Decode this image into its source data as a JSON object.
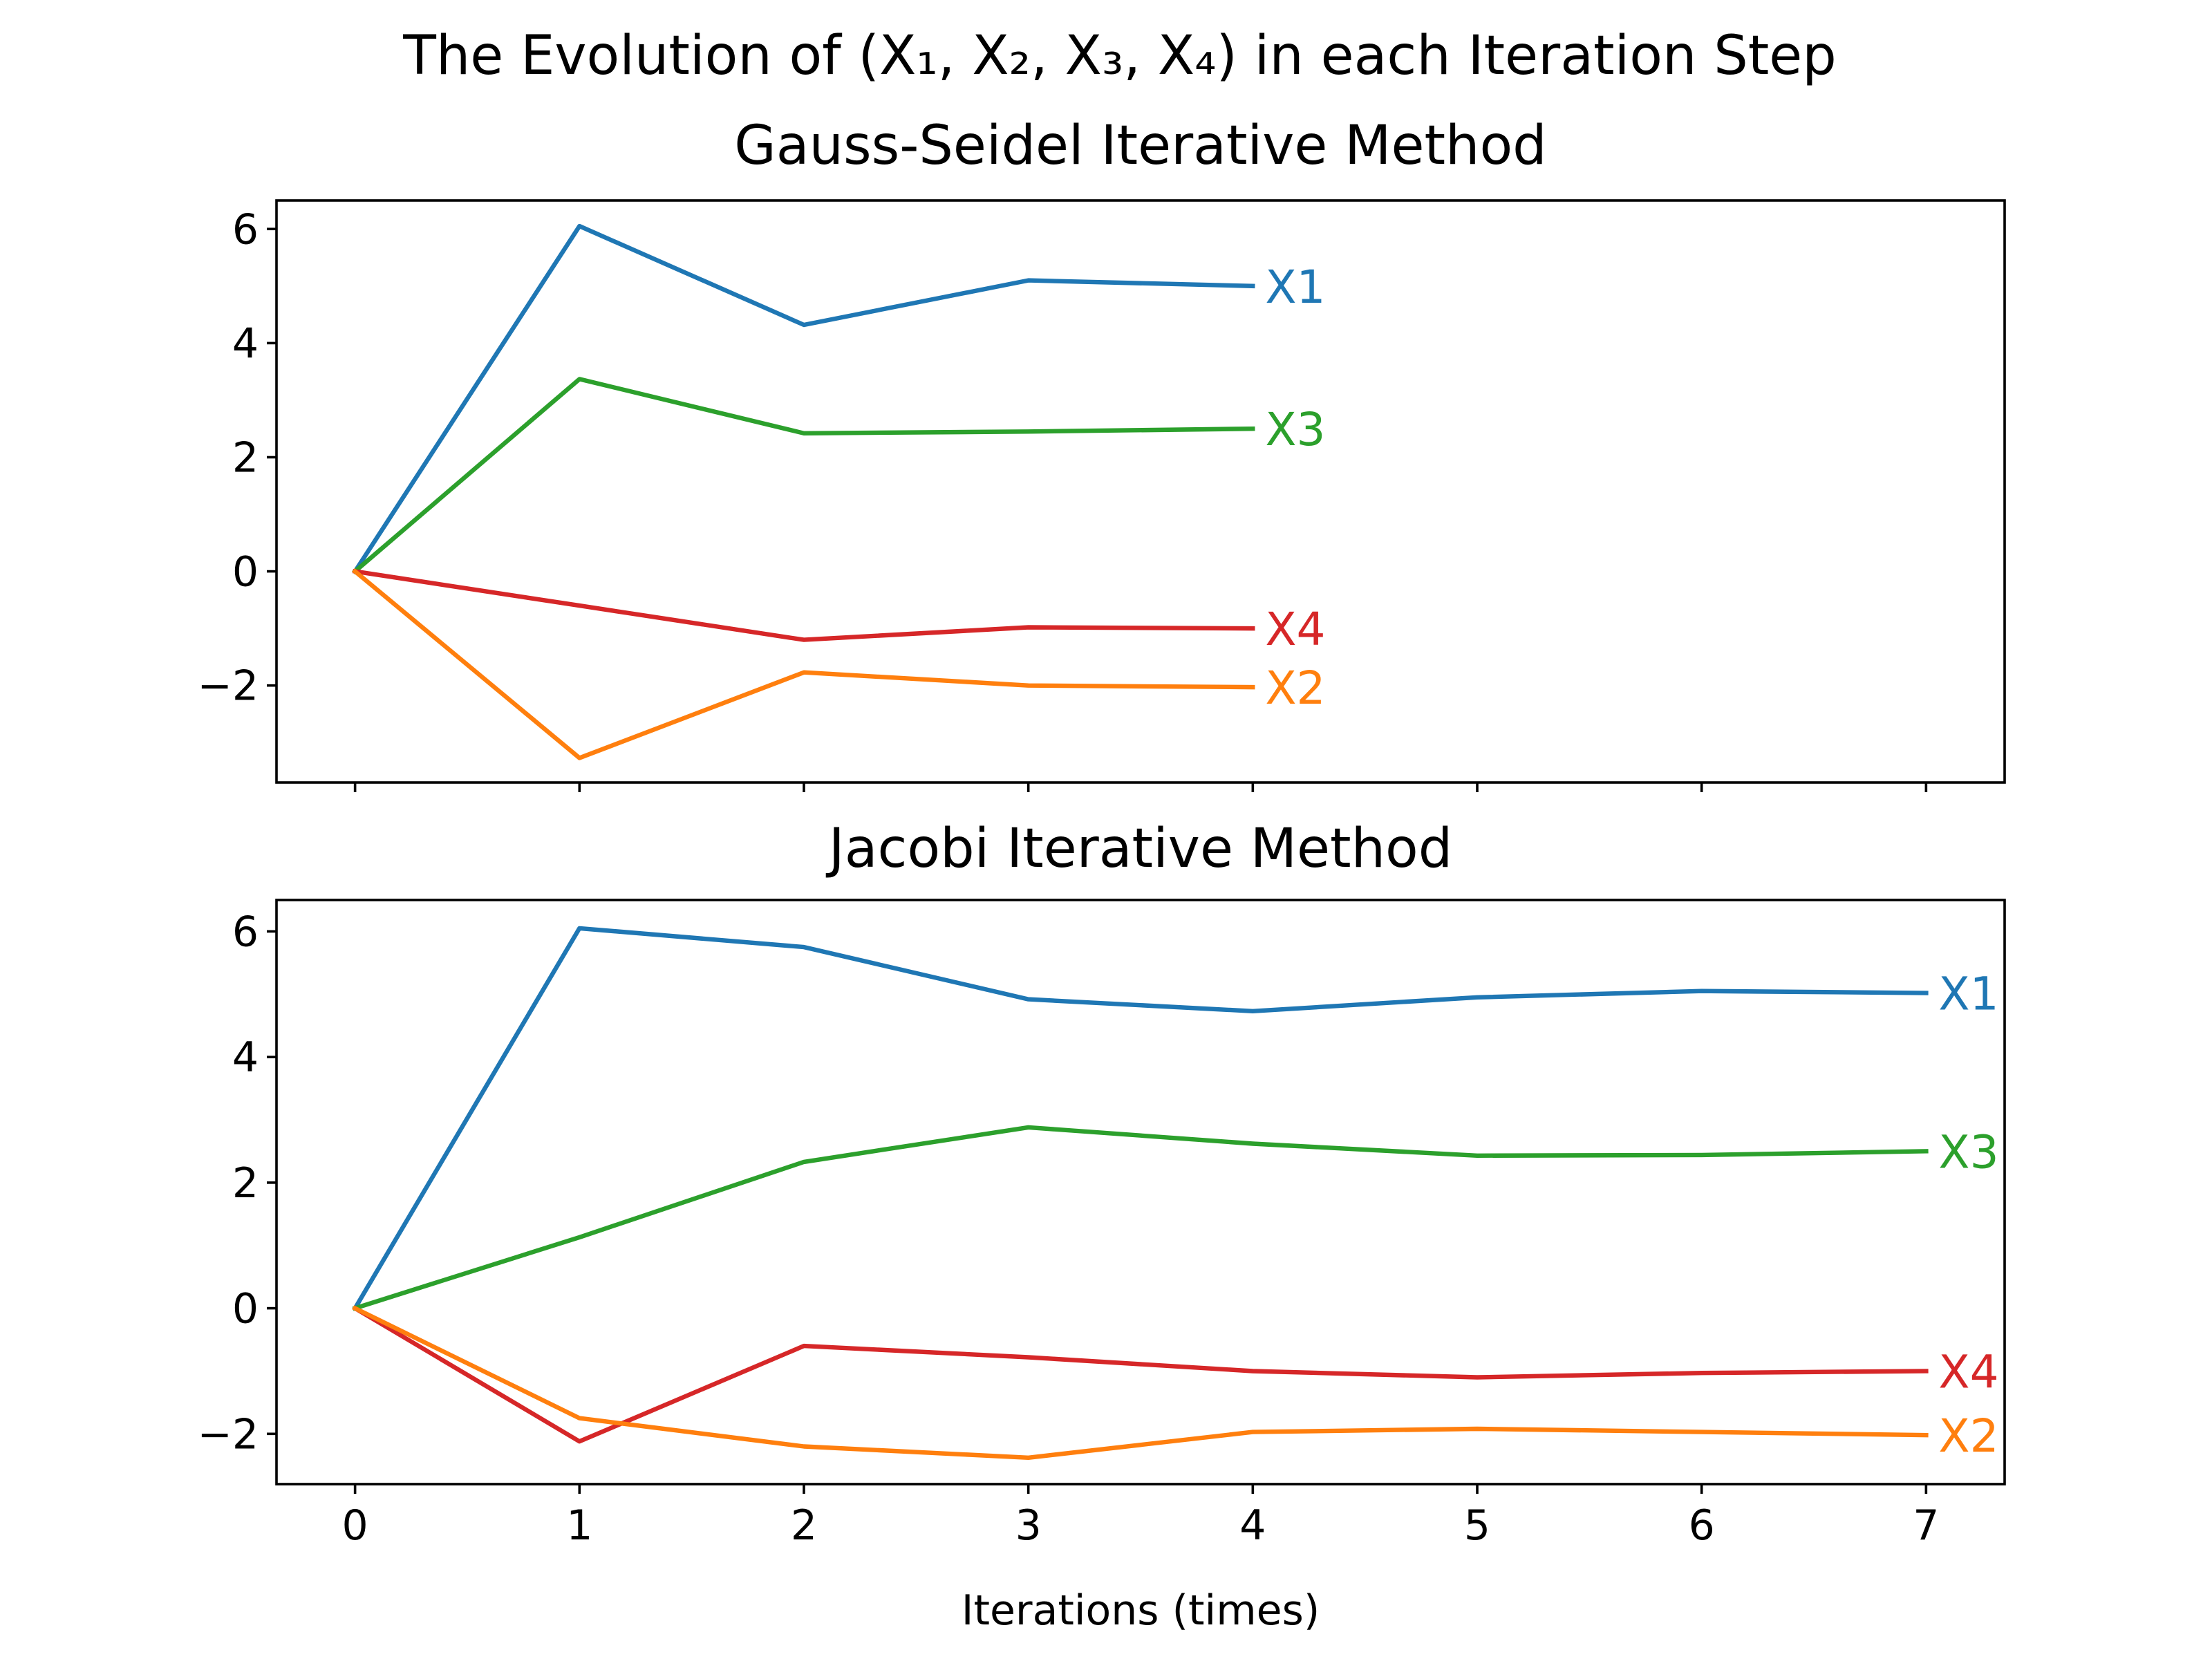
{
  "figure": {
    "suptitle": "The Evolution of (X₁, X₂, X₃, X₄) in each Iteration Step",
    "xlabel": "Iterations (times)"
  },
  "colors": {
    "X1": "#1f77b4",
    "X2": "#ff7f0e",
    "X3": "#2ca02c",
    "X4": "#d62728"
  },
  "chart_data": [
    {
      "type": "line",
      "title": "Gauss-Seidel Iterative Method",
      "xlim": [
        -0.35,
        7.35
      ],
      "ylim": [
        -3.7,
        6.5
      ],
      "xticks": [],
      "yticks": [
        -2,
        0,
        2,
        4,
        6
      ],
      "ytick_labels": [
        "−2",
        "0",
        "2",
        "4",
        "6"
      ],
      "grid": false,
      "series": [
        {
          "name": "X1",
          "x": [
            0,
            1,
            2,
            3,
            4
          ],
          "values": [
            0,
            6.05,
            4.32,
            5.1,
            5.0
          ]
        },
        {
          "name": "X3",
          "x": [
            0,
            1,
            2,
            3,
            4
          ],
          "values": [
            0,
            3.37,
            2.42,
            2.45,
            2.5
          ]
        },
        {
          "name": "X4",
          "x": [
            0,
            1,
            2,
            3,
            4
          ],
          "values": [
            0,
            -0.6,
            -1.2,
            -0.98,
            -1.0
          ]
        },
        {
          "name": "X2",
          "x": [
            0,
            1,
            2,
            3,
            4
          ],
          "values": [
            0,
            -3.27,
            -1.77,
            -2.0,
            -2.03
          ]
        }
      ]
    },
    {
      "type": "line",
      "title": "Jacobi Iterative Method",
      "xlim": [
        -0.35,
        7.35
      ],
      "ylim": [
        -2.8,
        6.5
      ],
      "xticks": [
        0,
        1,
        2,
        3,
        4,
        5,
        6,
        7
      ],
      "xtick_labels": [
        "0",
        "1",
        "2",
        "3",
        "4",
        "5",
        "6",
        "7"
      ],
      "yticks": [
        -2,
        0,
        2,
        4,
        6
      ],
      "ytick_labels": [
        "−2",
        "0",
        "2",
        "4",
        "6"
      ],
      "grid": false,
      "series": [
        {
          "name": "X1",
          "x": [
            0,
            1,
            2,
            3,
            4,
            5,
            6,
            7
          ],
          "values": [
            0,
            6.05,
            5.75,
            4.92,
            4.73,
            4.95,
            5.05,
            5.02
          ]
        },
        {
          "name": "X3",
          "x": [
            0,
            1,
            2,
            3,
            4,
            5,
            6,
            7
          ],
          "values": [
            0,
            1.13,
            2.33,
            2.88,
            2.62,
            2.43,
            2.44,
            2.5
          ]
        },
        {
          "name": "X4",
          "x": [
            0,
            1,
            2,
            3,
            4,
            5,
            6,
            7
          ],
          "values": [
            0,
            -2.12,
            -0.6,
            -0.78,
            -1.0,
            -1.1,
            -1.03,
            -1.0
          ]
        },
        {
          "name": "X2",
          "x": [
            0,
            1,
            2,
            3,
            4,
            5,
            6,
            7
          ],
          "values": [
            0,
            -1.75,
            -2.2,
            -2.38,
            -1.97,
            -1.92,
            -1.97,
            -2.02
          ]
        }
      ]
    }
  ]
}
